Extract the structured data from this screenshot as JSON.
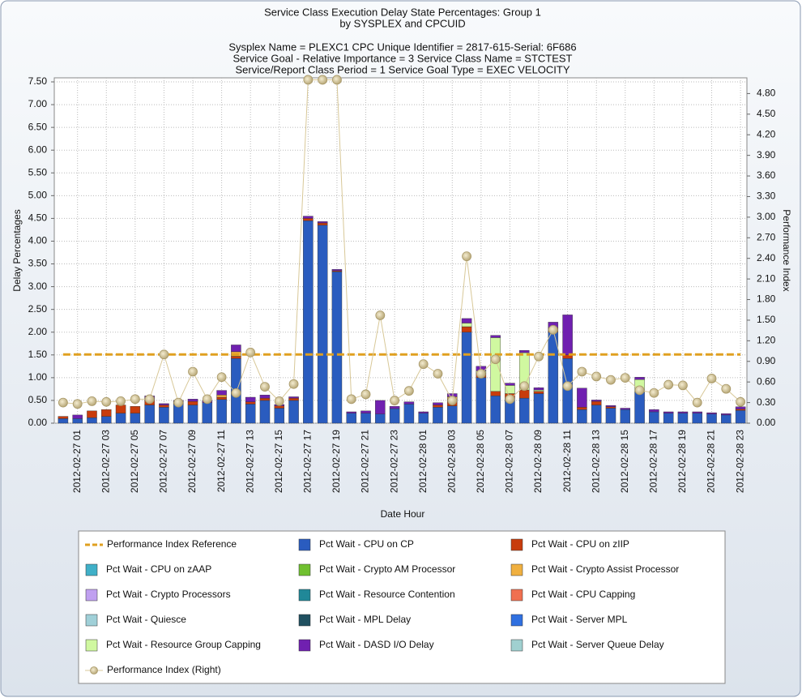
{
  "chart_data": {
    "type": "bar",
    "title": [
      "Service Class Execution Delay State Percentages: Group 1",
      "by SYSPLEX and CPCUID"
    ],
    "subtitle": [
      "Sysplex Name = PLEXC1  CPC Unique Identifier = 2817-615-Serial: 6F686",
      "Service Goal - Relative Importance = 3 Service Class Name = STCTEST",
      "Service/Report Class Period = 1  Service Goal Type = EXEC VELOCITY"
    ],
    "x_label": "Date Hour",
    "y_label": "Delay Percentages",
    "y2_label": "Performance Index",
    "categories": [
      null,
      "2012-02-27 01",
      null,
      "2012-02-27 03",
      null,
      "2012-02-27 05",
      null,
      "2012-02-27 07",
      null,
      "2012-02-27 09",
      null,
      "2012-02-27 11",
      null,
      "2012-02-27 13",
      null,
      "2012-02-27 15",
      null,
      "2012-02-27 17",
      null,
      "2012-02-27 19",
      null,
      "2012-02-27 21",
      null,
      "2012-02-27 23",
      null,
      "2012-02-28 01",
      null,
      "2012-02-28 03",
      null,
      "2012-02-28 05",
      null,
      "2012-02-28 07",
      null,
      "2012-02-28 09",
      null,
      "2012-02-28 11",
      null,
      "2012-02-28 13",
      null,
      "2012-02-28 15",
      null,
      "2012-02-28 17",
      null,
      "2012-02-28 19",
      null,
      "2012-02-28 21",
      null,
      "2012-02-28 23"
    ],
    "ylim": [
      0,
      7.5
    ],
    "yticks": [
      {
        "value": 0,
        "label": "0.00"
      },
      {
        "value": 0.5,
        "label": "0.50"
      },
      {
        "value": 1,
        "label": "1.00"
      },
      {
        "value": 1.5,
        "label": "1.50"
      },
      {
        "value": 2,
        "label": "2.00"
      },
      {
        "value": 2.5,
        "label": "2.50"
      },
      {
        "value": 3,
        "label": "3.00"
      },
      {
        "value": 3.5,
        "label": "3.50"
      },
      {
        "value": 4,
        "label": "4.00"
      },
      {
        "value": 4.5,
        "label": "4.50"
      },
      {
        "value": 5,
        "label": "5.00"
      },
      {
        "value": 5.5,
        "label": "5.50"
      },
      {
        "value": 6,
        "label": "6.00"
      },
      {
        "value": 6.5,
        "label": "6.50"
      },
      {
        "value": 7,
        "label": "7.00"
      },
      {
        "value": 7.5,
        "label": "7.50"
      }
    ],
    "y2lim": [
      0,
      4.97
    ],
    "y2ticks": [
      {
        "value": 0,
        "label": "0.00"
      },
      {
        "value": 0.3,
        "label": "0.30"
      },
      {
        "value": 0.6,
        "label": "0.60"
      },
      {
        "value": 0.9,
        "label": "0.90"
      },
      {
        "value": 1.2,
        "label": "1.20"
      },
      {
        "value": 1.5,
        "label": "1.50"
      },
      {
        "value": 1.8,
        "label": "1.80"
      },
      {
        "value": 2.1,
        "label": "2.10"
      },
      {
        "value": 2.4,
        "label": "2.40"
      },
      {
        "value": 2.7,
        "label": "2.70"
      },
      {
        "value": 3,
        "label": "3.00"
      },
      {
        "value": 3.3,
        "label": "3.30"
      },
      {
        "value": 3.6,
        "label": "3.60"
      },
      {
        "value": 3.9,
        "label": "3.90"
      },
      {
        "value": 4.2,
        "label": "4.20"
      },
      {
        "value": 4.5,
        "label": "4.50"
      },
      {
        "value": 4.8,
        "label": "4.80"
      }
    ],
    "grid": true,
    "series": [
      {
        "name": "Performance Index Reference",
        "type": "line",
        "dashed": true,
        "axis": "y2",
        "color": "#e0a020",
        "values": [
          1,
          1,
          1,
          1,
          1,
          1,
          1,
          1,
          1,
          1,
          1,
          1,
          1,
          1,
          1,
          1,
          1,
          1,
          1,
          1,
          1,
          1,
          1,
          1,
          1,
          1,
          1,
          1,
          1,
          1,
          1,
          1,
          1,
          1,
          1,
          1,
          1,
          1,
          1,
          1,
          1,
          1,
          1,
          1,
          1,
          1,
          1,
          1
        ]
      },
      {
        "name": "Pct Wait - CPU on CP",
        "type": "bar",
        "color": "#2a5cbf",
        "values": [
          0.1,
          0.1,
          0.12,
          0.15,
          0.22,
          0.22,
          0.4,
          0.35,
          0.42,
          0.4,
          0.45,
          0.52,
          1.42,
          0.42,
          0.5,
          0.33,
          0.5,
          4.45,
          4.35,
          3.33,
          0.22,
          0.22,
          0.2,
          0.32,
          0.42,
          0.22,
          0.35,
          0.38,
          2.0,
          1.0,
          0.6,
          0.55,
          0.55,
          0.65,
          2.0,
          1.42,
          0.3,
          0.4,
          0.33,
          0.3,
          0.68,
          0.25,
          0.22,
          0.22,
          0.22,
          0.2,
          0.18,
          0.28
        ]
      },
      {
        "name": "Pct Wait - CPU on zIIP",
        "type": "bar",
        "color": "#c83c0c",
        "values": [
          0.05,
          0,
          0.15,
          0.15,
          0.18,
          0.15,
          0.15,
          0.05,
          0.05,
          0.08,
          0,
          0.05,
          0.05,
          0.05,
          0.05,
          0.05,
          0.05,
          0.05,
          0.05,
          0.02,
          0,
          0,
          0,
          0,
          0,
          0,
          0.05,
          0.15,
          0.12,
          0.1,
          0.1,
          0.1,
          0.18,
          0.05,
          0.1,
          0.08,
          0.05,
          0.08,
          0.03,
          0,
          0,
          0,
          0,
          0,
          0,
          0,
          0,
          0.03
        ]
      },
      {
        "name": "Pct Wait - CPU on zAAP",
        "type": "bar",
        "color": "#40b0c8",
        "values": [
          0,
          0,
          0,
          0,
          0,
          0,
          0,
          0,
          0,
          0,
          0,
          0,
          0,
          0,
          0,
          0,
          0,
          0,
          0,
          0,
          0,
          0,
          0,
          0,
          0,
          0,
          0,
          0,
          0,
          0,
          0,
          0,
          0,
          0,
          0,
          0,
          0,
          0,
          0,
          0,
          0,
          0,
          0,
          0,
          0,
          0,
          0,
          0
        ]
      },
      {
        "name": "Pct Wait - Crypto AM Processor",
        "type": "bar",
        "color": "#70c030",
        "values": [
          0,
          0,
          0,
          0,
          0,
          0,
          0,
          0,
          0,
          0,
          0,
          0,
          0,
          0,
          0,
          0,
          0,
          0,
          0,
          0,
          0,
          0,
          0,
          0,
          0,
          0,
          0,
          0,
          0,
          0,
          0,
          0,
          0,
          0,
          0,
          0,
          0,
          0,
          0,
          0,
          0,
          0,
          0,
          0,
          0,
          0,
          0,
          0
        ]
      },
      {
        "name": "Pct Wait - Crypto Assist Processor",
        "type": "bar",
        "color": "#f0b040",
        "values": [
          0,
          0,
          0,
          0,
          0,
          0,
          0,
          0,
          0,
          0,
          0,
          0.05,
          0.1,
          0,
          0,
          0,
          0,
          0,
          0,
          0,
          0,
          0,
          0,
          0,
          0,
          0,
          0,
          0.05,
          0,
          0,
          0,
          0,
          0,
          0,
          0,
          0,
          0,
          0,
          0,
          0,
          0,
          0,
          0,
          0,
          0,
          0,
          0,
          0
        ]
      },
      {
        "name": "Pct Wait - Crypto Processors",
        "type": "bar",
        "color": "#c0a0f0",
        "values": [
          0,
          0,
          0,
          0,
          0,
          0,
          0,
          0,
          0,
          0,
          0,
          0,
          0,
          0,
          0,
          0,
          0,
          0,
          0,
          0,
          0,
          0,
          0,
          0,
          0,
          0,
          0,
          0,
          0,
          0,
          0,
          0,
          0,
          0,
          0,
          0,
          0,
          0,
          0,
          0,
          0,
          0,
          0,
          0,
          0,
          0,
          0,
          0
        ]
      },
      {
        "name": "Pct Wait - Resource Contention",
        "type": "bar",
        "color": "#208898",
        "values": [
          0,
          0,
          0,
          0,
          0,
          0,
          0,
          0,
          0,
          0,
          0,
          0,
          0,
          0,
          0,
          0,
          0,
          0,
          0,
          0,
          0,
          0,
          0,
          0,
          0,
          0,
          0,
          0,
          0,
          0,
          0,
          0,
          0,
          0,
          0,
          0,
          0,
          0,
          0,
          0,
          0,
          0,
          0,
          0,
          0,
          0,
          0,
          0
        ]
      },
      {
        "name": "Pct Wait - CPU Capping",
        "type": "bar",
        "color": "#f07050",
        "values": [
          0,
          0,
          0,
          0,
          0,
          0,
          0,
          0,
          0,
          0,
          0,
          0,
          0,
          0,
          0,
          0,
          0,
          0,
          0,
          0,
          0,
          0,
          0,
          0,
          0,
          0,
          0,
          0,
          0,
          0,
          0,
          0,
          0,
          0,
          0,
          0,
          0,
          0,
          0,
          0,
          0,
          0,
          0,
          0,
          0,
          0,
          0,
          0
        ]
      },
      {
        "name": "Pct Wait - Quiesce",
        "type": "bar",
        "color": "#a0d0d8",
        "values": [
          0,
          0,
          0,
          0,
          0,
          0,
          0,
          0,
          0,
          0,
          0,
          0,
          0,
          0,
          0,
          0,
          0,
          0,
          0,
          0,
          0,
          0,
          0,
          0,
          0,
          0,
          0,
          0,
          0,
          0,
          0,
          0,
          0,
          0,
          0,
          0,
          0,
          0,
          0,
          0,
          0,
          0,
          0,
          0,
          0,
          0,
          0,
          0
        ]
      },
      {
        "name": "Pct Wait - MPL Delay",
        "type": "bar",
        "color": "#205060",
        "values": [
          0,
          0,
          0,
          0,
          0,
          0,
          0,
          0,
          0,
          0,
          0,
          0,
          0,
          0,
          0,
          0,
          0,
          0,
          0,
          0,
          0,
          0,
          0,
          0,
          0,
          0,
          0,
          0,
          0,
          0,
          0,
          0,
          0,
          0,
          0,
          0,
          0,
          0,
          0,
          0,
          0,
          0,
          0,
          0,
          0,
          0,
          0,
          0
        ]
      },
      {
        "name": "Pct Wait - Server MPL",
        "type": "bar",
        "color": "#3070e0",
        "values": [
          0,
          0,
          0,
          0,
          0,
          0,
          0,
          0,
          0,
          0,
          0,
          0,
          0,
          0,
          0,
          0,
          0,
          0,
          0,
          0,
          0,
          0,
          0,
          0,
          0,
          0,
          0,
          0,
          0,
          0,
          0,
          0,
          0,
          0,
          0,
          0,
          0,
          0,
          0,
          0,
          0,
          0,
          0,
          0,
          0,
          0,
          0,
          0
        ]
      },
      {
        "name": "Pct Wait - Resource Group Capping",
        "type": "bar",
        "color": "#d0f8a0",
        "values": [
          0,
          0,
          0,
          0,
          0,
          0,
          0,
          0,
          0,
          0,
          0,
          0,
          0,
          0,
          0,
          0,
          0,
          0,
          0,
          0,
          0,
          0,
          0,
          0,
          0,
          0,
          0,
          0,
          0.08,
          0.05,
          1.18,
          0.18,
          0.82,
          0.03,
          0,
          0,
          0,
          0,
          0,
          0,
          0.28,
          0,
          0,
          0,
          0,
          0,
          0,
          0
        ]
      },
      {
        "name": "Pct Wait - DASD I/O Delay",
        "type": "bar",
        "color": "#7020b0",
        "values": [
          0,
          0.08,
          0,
          0,
          0,
          0,
          0.05,
          0.03,
          0.03,
          0.05,
          0.05,
          0.1,
          0.15,
          0.1,
          0.07,
          0.03,
          0.03,
          0.05,
          0.03,
          0.03,
          0.03,
          0.05,
          0.3,
          0.05,
          0.05,
          0.03,
          0.05,
          0.07,
          0.1,
          0.1,
          0.05,
          0.05,
          0.05,
          0.05,
          0.12,
          0.88,
          0.42,
          0.03,
          0.03,
          0.03,
          0.05,
          0.05,
          0.03,
          0.03,
          0.03,
          0.03,
          0.03,
          0.05
        ]
      },
      {
        "name": "Pct Wait - Server Queue Delay",
        "type": "bar",
        "color": "#a0d0d0",
        "values": [
          0,
          0,
          0,
          0,
          0,
          0,
          0,
          0,
          0,
          0,
          0,
          0,
          0,
          0,
          0,
          0,
          0,
          0,
          0,
          0,
          0,
          0,
          0,
          0,
          0,
          0,
          0,
          0,
          0,
          0,
          0,
          0,
          0,
          0,
          0,
          0,
          0,
          0,
          0,
          0,
          0,
          0,
          0,
          0,
          0,
          0,
          0,
          0
        ]
      },
      {
        "name": "Performance Index (Right)",
        "type": "scatter-line",
        "axis": "y2",
        "color": "#d8c898",
        "values": [
          0.3,
          0.28,
          0.32,
          0.31,
          0.32,
          0.35,
          0.35,
          1.0,
          0.3,
          0.75,
          0.35,
          0.67,
          0.44,
          1.03,
          0.53,
          0.32,
          0.57,
          5.0,
          5.0,
          5.0,
          0.35,
          0.42,
          1.57,
          0.33,
          0.47,
          0.86,
          0.72,
          0.33,
          2.43,
          0.72,
          0.93,
          0.35,
          0.54,
          0.97,
          1.36,
          0.54,
          0.75,
          0.68,
          0.63,
          0.66,
          0.48,
          0.44,
          0.56,
          0.55,
          0.3,
          0.65,
          0.5,
          0.31
        ]
      }
    ]
  }
}
